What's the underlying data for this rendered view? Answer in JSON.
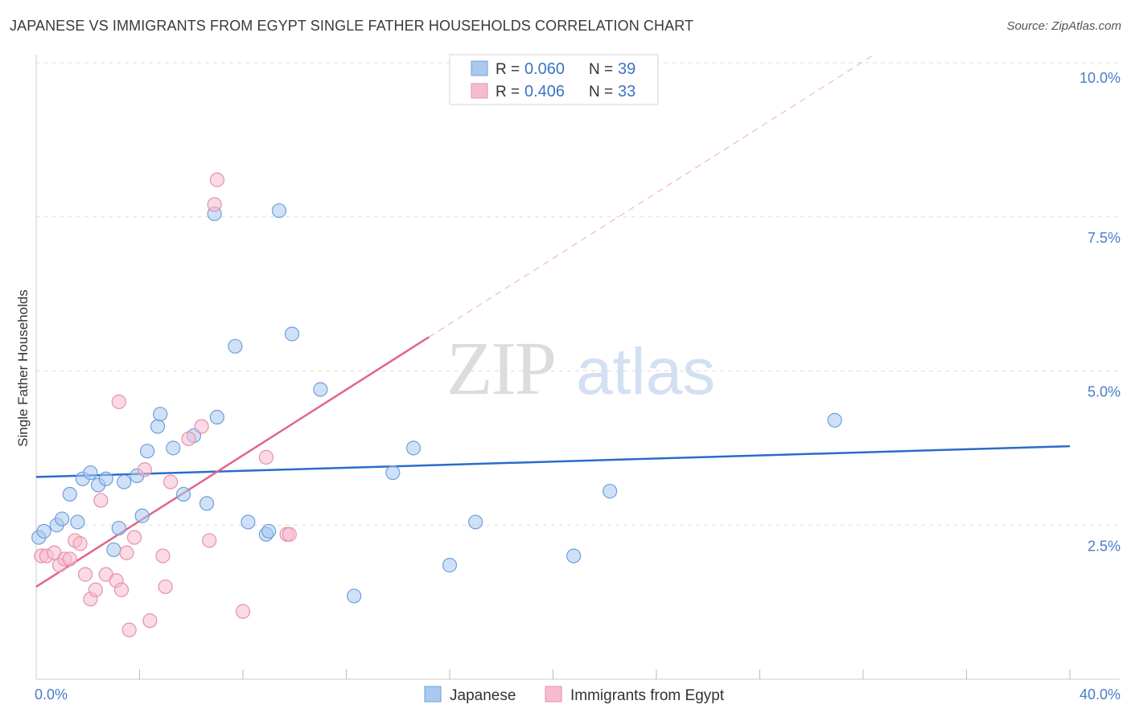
{
  "header": {
    "title": "JAPANESE VS IMMIGRANTS FROM EGYPT SINGLE FATHER HOUSEHOLDS CORRELATION CHART",
    "source": "Source: ZipAtlas.com"
  },
  "watermark": {
    "part1": "ZIP",
    "part2": "atlas"
  },
  "legend_top": [
    {
      "r_label": "R =",
      "r_value": "0.060",
      "n_label": "N =",
      "n_value": "39"
    },
    {
      "r_label": "R =",
      "r_value": "0.406",
      "n_label": "N =",
      "n_value": "33"
    }
  ],
  "legend_bottom": [
    {
      "label": "Japanese"
    },
    {
      "label": "Immigrants from Egypt"
    }
  ],
  "colors": {
    "japanese_fill": "#aac8f0",
    "japanese_stroke": "#6f9fdc",
    "japanese_line": "#2a6cc8",
    "egypt_fill": "#f6bccd",
    "egypt_stroke": "#e890ab",
    "egypt_line": "#e0658f",
    "tick_label": "#4a7cc7",
    "grid": "#dddddd"
  },
  "chart_data": {
    "type": "scatter",
    "title": "JAPANESE VS IMMIGRANTS FROM EGYPT SINGLE FATHER HOUSEHOLDS CORRELATION CHART",
    "xlabel": "",
    "ylabel": "Single Father Households",
    "xlim": [
      0,
      40
    ],
    "ylim": [
      0,
      10
    ],
    "x_tick_labels": [
      {
        "value": 0,
        "label": "0.0%"
      },
      {
        "value": 40,
        "label": "40.0%"
      }
    ],
    "y_tick_labels": [
      {
        "value": 2.5,
        "label": "2.5%"
      },
      {
        "value": 5.0,
        "label": "5.0%"
      },
      {
        "value": 7.5,
        "label": "7.5%"
      },
      {
        "value": 10.0,
        "label": "10.0%"
      }
    ],
    "grid": true,
    "legend": "top-center",
    "series": [
      {
        "name": "Japanese",
        "points": [
          [
            0.1,
            2.3
          ],
          [
            0.3,
            2.4
          ],
          [
            0.8,
            2.5
          ],
          [
            1.0,
            2.6
          ],
          [
            1.3,
            3.0
          ],
          [
            1.6,
            2.55
          ],
          [
            1.8,
            3.25
          ],
          [
            2.1,
            3.35
          ],
          [
            2.4,
            3.15
          ],
          [
            2.7,
            3.25
          ],
          [
            3.0,
            2.1
          ],
          [
            3.2,
            2.45
          ],
          [
            3.4,
            3.2
          ],
          [
            3.9,
            3.3
          ],
          [
            4.1,
            2.65
          ],
          [
            4.3,
            3.7
          ],
          [
            4.7,
            4.1
          ],
          [
            4.8,
            4.3
          ],
          [
            5.3,
            3.75
          ],
          [
            5.7,
            3.0
          ],
          [
            6.1,
            3.95
          ],
          [
            6.6,
            2.85
          ],
          [
            6.9,
            7.55
          ],
          [
            7.0,
            4.25
          ],
          [
            7.7,
            5.4
          ],
          [
            8.2,
            2.55
          ],
          [
            8.9,
            2.35
          ],
          [
            9.0,
            2.4
          ],
          [
            9.4,
            7.6
          ],
          [
            9.9,
            5.6
          ],
          [
            11.0,
            4.7
          ],
          [
            12.3,
            1.35
          ],
          [
            13.8,
            3.35
          ],
          [
            14.6,
            3.75
          ],
          [
            16.0,
            1.85
          ],
          [
            17.0,
            2.55
          ],
          [
            20.8,
            2.0
          ],
          [
            22.2,
            3.05
          ],
          [
            30.9,
            4.2
          ]
        ],
        "trend": {
          "x": [
            0,
            40
          ],
          "y": [
            3.28,
            3.78
          ]
        }
      },
      {
        "name": "Immigrants from Egypt",
        "points": [
          [
            0.2,
            2.0
          ],
          [
            0.4,
            2.0
          ],
          [
            0.7,
            2.05
          ],
          [
            0.9,
            1.85
          ],
          [
            1.1,
            1.95
          ],
          [
            1.3,
            1.95
          ],
          [
            1.5,
            2.25
          ],
          [
            1.7,
            2.2
          ],
          [
            1.9,
            1.7
          ],
          [
            2.1,
            1.3
          ],
          [
            2.3,
            1.45
          ],
          [
            2.5,
            2.9
          ],
          [
            2.7,
            1.7
          ],
          [
            3.1,
            1.6
          ],
          [
            3.2,
            4.5
          ],
          [
            3.3,
            1.45
          ],
          [
            3.5,
            2.05
          ],
          [
            3.6,
            0.8
          ],
          [
            3.8,
            2.3
          ],
          [
            4.2,
            3.4
          ],
          [
            4.4,
            0.95
          ],
          [
            4.9,
            2.0
          ],
          [
            5.0,
            1.5
          ],
          [
            5.2,
            3.2
          ],
          [
            5.9,
            3.9
          ],
          [
            6.4,
            4.1
          ],
          [
            6.7,
            2.25
          ],
          [
            6.9,
            7.7
          ],
          [
            7.0,
            8.1
          ],
          [
            8.0,
            1.1
          ],
          [
            8.9,
            3.6
          ],
          [
            9.7,
            2.35
          ],
          [
            9.8,
            2.35
          ]
        ],
        "trend": {
          "x": [
            0,
            15.2
          ],
          "y": [
            1.5,
            5.55
          ]
        },
        "trend_extension": {
          "x": [
            15.2,
            32.5
          ],
          "y": [
            5.55,
            10.15
          ]
        }
      }
    ]
  }
}
